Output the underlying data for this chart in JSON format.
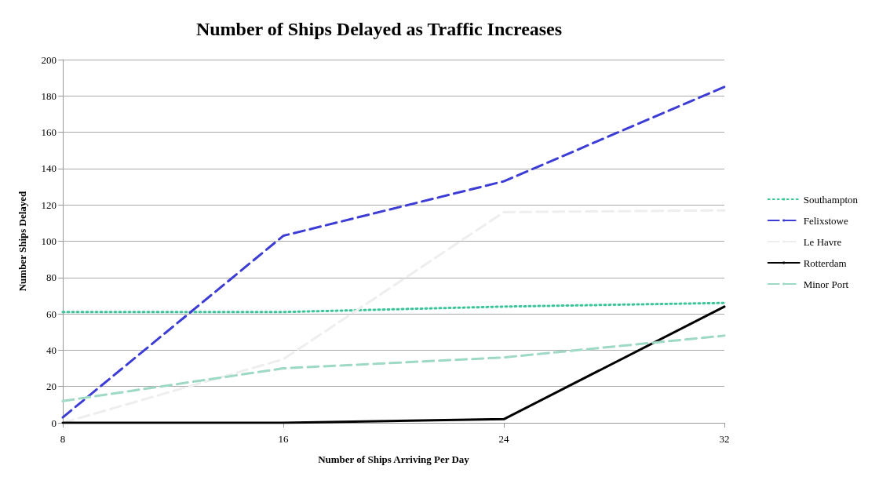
{
  "chart_data": {
    "type": "line",
    "title": "Number of Ships Delayed as Traffic Increases",
    "xlabel": "Number of Ships Arriving Per Day",
    "ylabel": "Number Ships Delayed",
    "x": [
      8,
      16,
      24,
      32
    ],
    "xlim": [
      8,
      32
    ],
    "xticks": [
      8,
      16,
      24,
      32
    ],
    "ylim": [
      0,
      200
    ],
    "yticks": [
      0,
      20,
      40,
      60,
      80,
      100,
      120,
      140,
      160,
      180,
      200
    ],
    "grid": "y",
    "legend": "right",
    "marker": "none",
    "series": [
      {
        "name": "Southampton",
        "color": "#3cc49a",
        "line_style": "dotted",
        "values": [
          61,
          61,
          64,
          66
        ]
      },
      {
        "name": "Felixstowe",
        "color": "#3d3dd6",
        "line_style": "dashed",
        "values": [
          3,
          103,
          133,
          185
        ]
      },
      {
        "name": "Le Havre",
        "color": "#eeeeee",
        "line_style": "dashed",
        "values": [
          0,
          35,
          116,
          117
        ]
      },
      {
        "name": "Rotterdam",
        "color": "#000000",
        "line_style": "solid",
        "values": [
          0,
          0,
          2,
          64
        ]
      },
      {
        "name": "Minor Port",
        "color": "#9ed9c3",
        "line_style": "dashed",
        "values": [
          12,
          30,
          36,
          48
        ]
      }
    ]
  }
}
